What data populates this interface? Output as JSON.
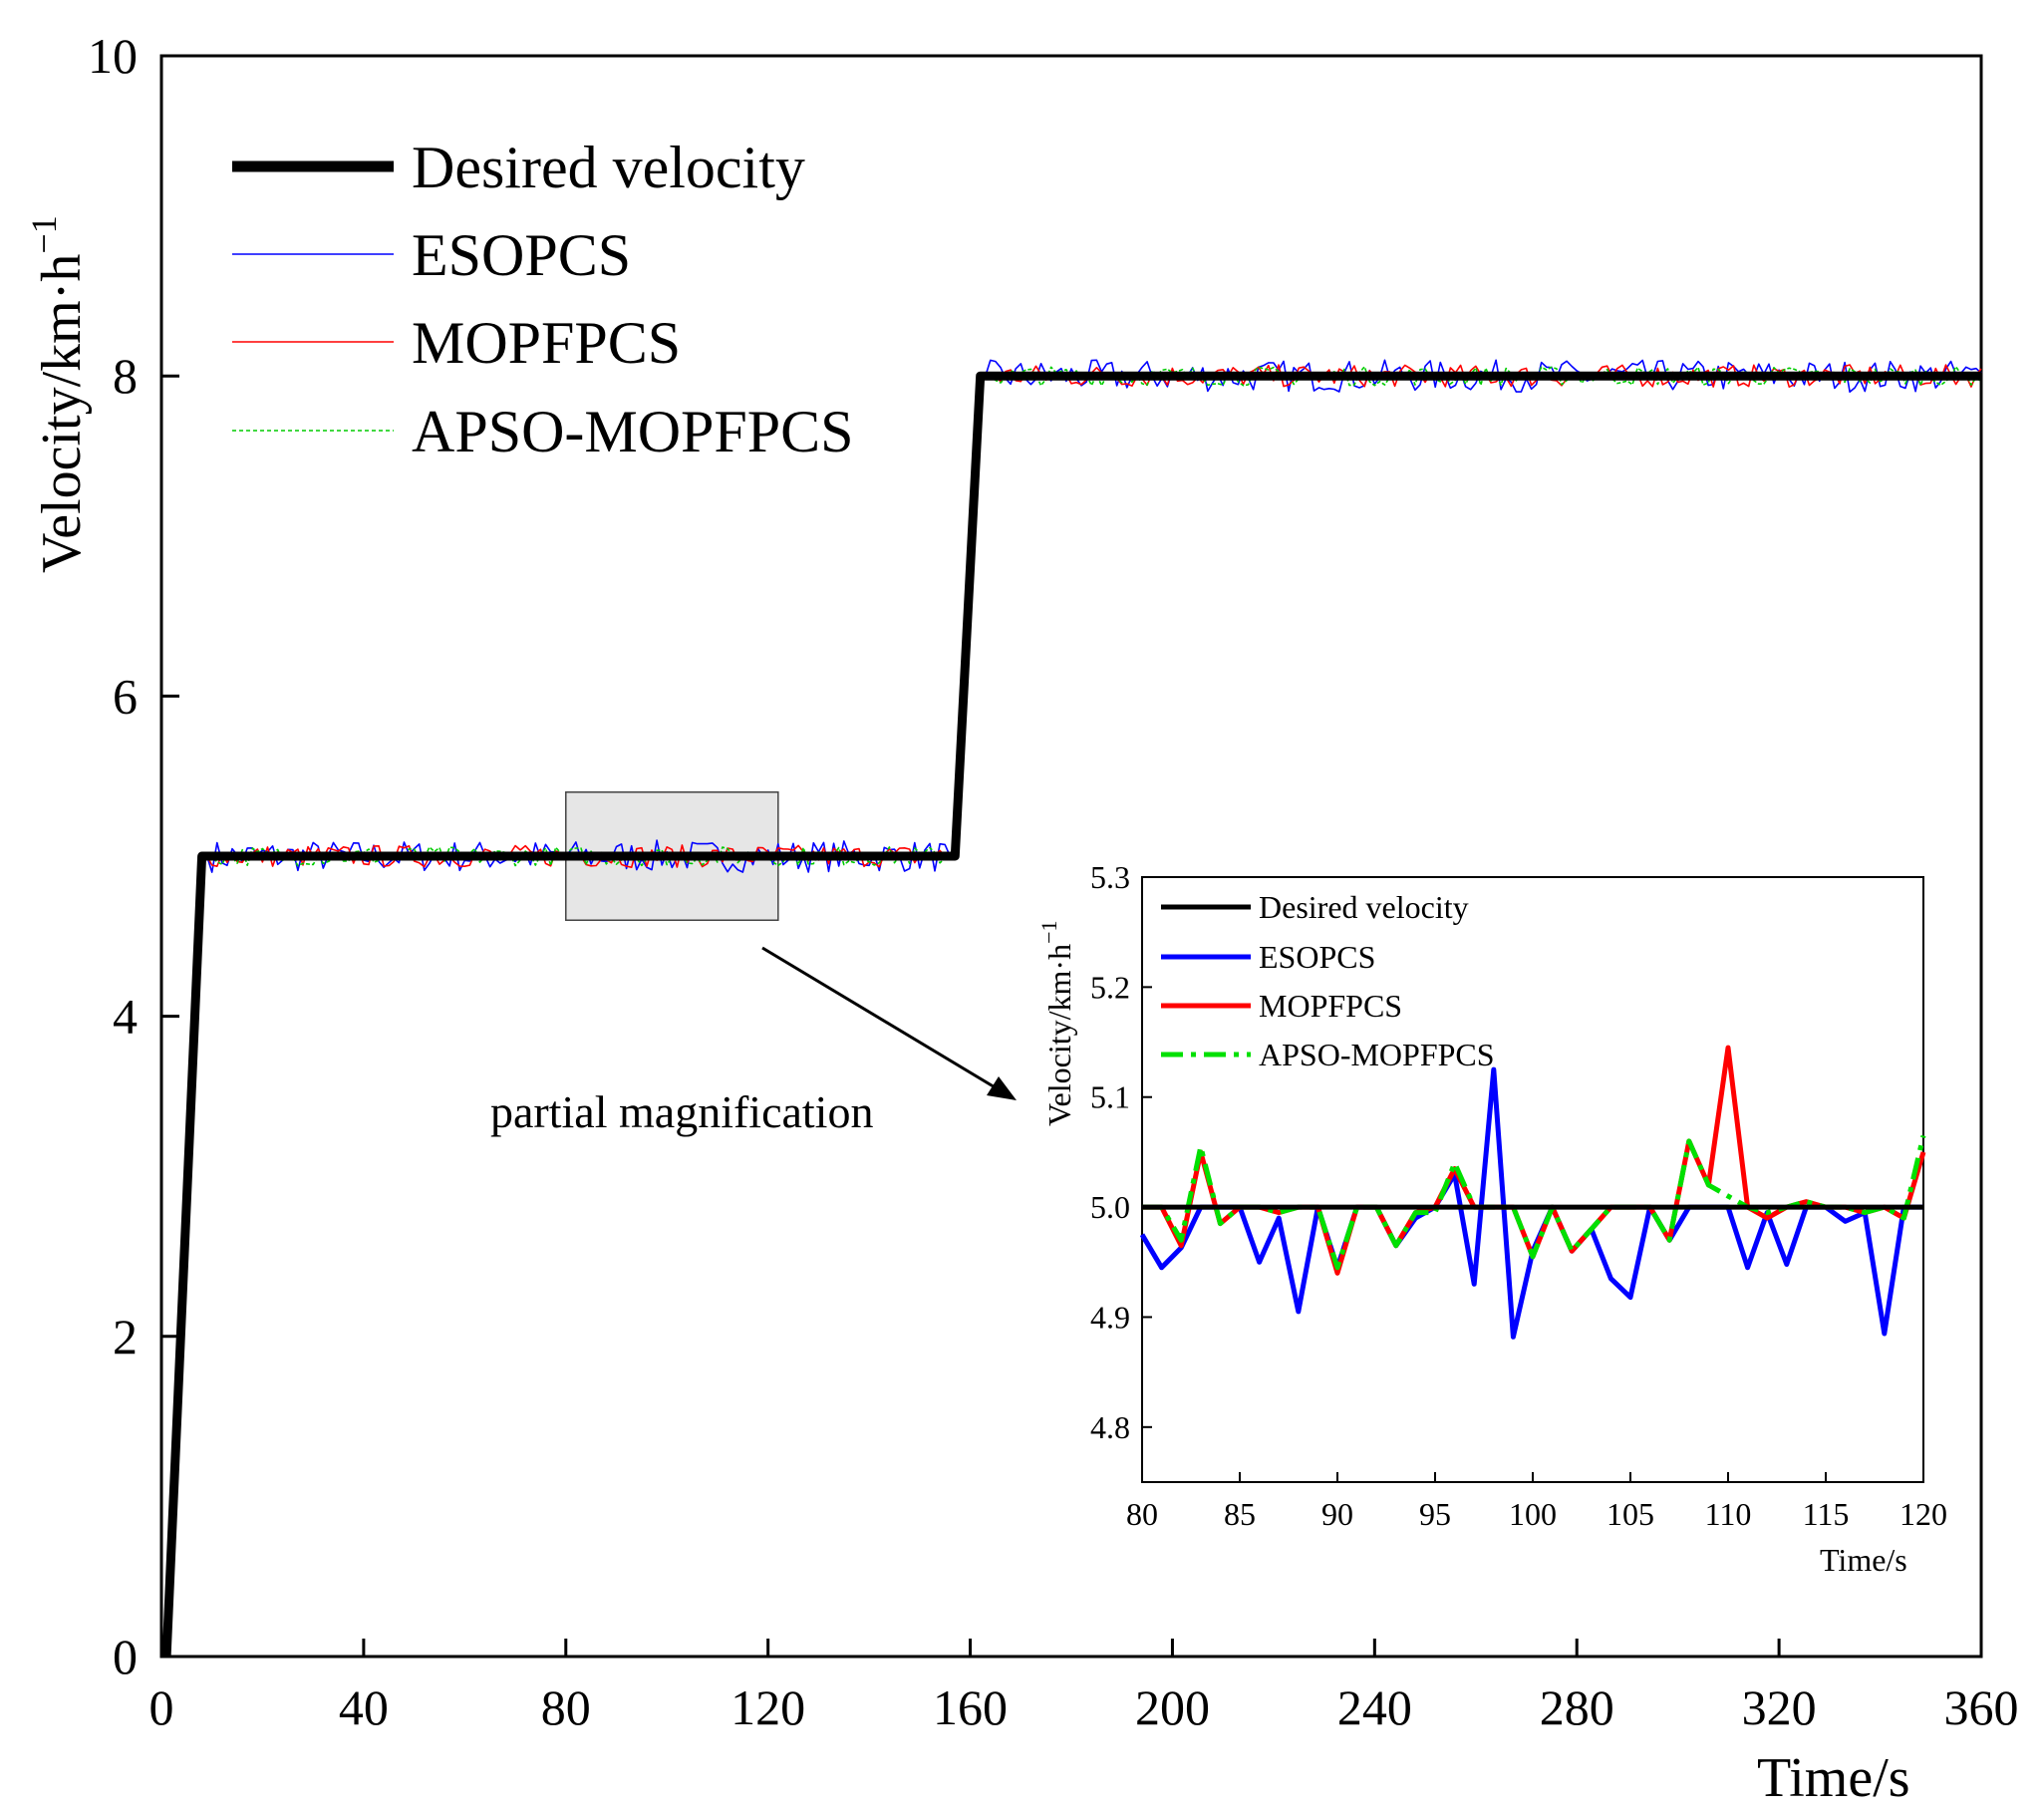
{
  "chart_data": [
    {
      "id": "main",
      "type": "line",
      "title": "",
      "xlabel": "Time/s",
      "ylabel": "Velocity/km·h",
      "ylabel_superscript": "−1",
      "xlim": [
        0,
        360
      ],
      "ylim": [
        0,
        10
      ],
      "xticks": [
        0,
        40,
        80,
        120,
        160,
        200,
        240,
        280,
        320,
        360
      ],
      "yticks": [
        0,
        2,
        4,
        6,
        8,
        10
      ],
      "grid": false,
      "legend_position": "top-left",
      "series": [
        {
          "name": "Desired velocity",
          "color": "#000000",
          "style": "solid-thick",
          "points": [
            [
              1,
              0
            ],
            [
              8,
              5
            ],
            [
              157,
              5
            ],
            [
              162,
              8
            ],
            [
              360,
              8
            ]
          ]
        },
        {
          "name": "ESOPCS",
          "color": "#0000ff",
          "style": "solid-thin",
          "ramps": [
            [
              1,
              0
            ],
            [
              8,
              5
            ],
            [
              157,
              5
            ],
            [
              162,
              8
            ],
            [
              360,
              8
            ]
          ],
          "noise_amplitude": 0.1
        },
        {
          "name": "MOPFPCS",
          "color": "#ff0000",
          "style": "solid-thin",
          "ramps": [
            [
              1,
              0
            ],
            [
              8,
              5
            ],
            [
              157,
              5
            ],
            [
              162,
              8
            ],
            [
              360,
              8
            ]
          ],
          "noise_amplitude": 0.07
        },
        {
          "name": "APSO-MOPFPCS",
          "color": "#00cc00",
          "style": "dashed-thin",
          "ramps": [
            [
              1,
              0
            ],
            [
              8,
              5
            ],
            [
              157,
              5
            ],
            [
              162,
              8
            ],
            [
              360,
              8
            ]
          ],
          "noise_amplitude": 0.06
        }
      ],
      "zoom_box": {
        "x": [
          80,
          122
        ],
        "y": [
          4.6,
          5.4
        ]
      },
      "annotation": "partial magnification"
    },
    {
      "id": "inset",
      "type": "line",
      "title": "",
      "xlabel": "Time/s",
      "ylabel": "Velocity/km·h",
      "ylabel_superscript": "−1",
      "xlim": [
        80,
        120
      ],
      "ylim": [
        4.75,
        5.3
      ],
      "xticks": [
        80,
        85,
        90,
        95,
        100,
        105,
        110,
        115,
        120
      ],
      "yticks": [
        4.8,
        4.9,
        5.0,
        5.1,
        5.2,
        5.3
      ],
      "ytick_labels": [
        "4.8",
        "4.9",
        "5.0",
        "5.1",
        "5.2",
        "5.3"
      ],
      "grid": false,
      "legend_position": "top-left",
      "series": [
        {
          "name": "Desired velocity",
          "color": "#000000",
          "style": "solid",
          "x": [
            80,
            120
          ],
          "y": [
            5.0,
            5.0
          ]
        },
        {
          "name": "ESOPCS",
          "color": "#0000ff",
          "style": "solid",
          "x": [
            80,
            81,
            82,
            83,
            84,
            85,
            86,
            87,
            88,
            89,
            90,
            91,
            92,
            93,
            94,
            95,
            96,
            97,
            98,
            99,
            100,
            101,
            102,
            103,
            104,
            105,
            106,
            107,
            108,
            109,
            110,
            111,
            112,
            113,
            114,
            115,
            116,
            117,
            118,
            119,
            120
          ],
          "y": [
            4.975,
            4.945,
            4.963,
            5.0,
            5.0,
            5.0,
            4.95,
            4.99,
            4.905,
            5.0,
            4.945,
            5.0,
            5.0,
            4.965,
            4.99,
            5.0,
            5.03,
            4.93,
            5.125,
            4.882,
            4.96,
            5.0,
            4.96,
            4.98,
            4.935,
            4.918,
            5.0,
            4.97,
            5.0,
            5.0,
            5.0,
            4.945,
            4.995,
            4.948,
            5.0,
            5.0,
            4.987,
            4.995,
            4.885,
            5.0,
            5.0
          ]
        },
        {
          "name": "MOPFPCS",
          "color": "#ff0000",
          "style": "solid",
          "x": [
            80,
            81,
            82,
            83,
            84,
            85,
            86,
            87,
            88,
            89,
            90,
            91,
            92,
            93,
            94,
            95,
            96,
            97,
            98,
            99,
            100,
            101,
            102,
            103,
            104,
            105,
            106,
            107,
            108,
            109,
            110,
            111,
            112,
            113,
            114,
            115,
            116,
            117,
            118,
            119,
            120
          ],
          "y": [
            5.0,
            5.0,
            4.965,
            5.05,
            4.985,
            5.0,
            5.0,
            4.995,
            5.0,
            5.0,
            4.94,
            5.0,
            5.0,
            4.965,
            4.995,
            5.0,
            5.035,
            5.0,
            5.0,
            5.0,
            4.955,
            5.0,
            4.96,
            4.98,
            5.0,
            5.0,
            5.0,
            4.97,
            5.06,
            5.02,
            5.145,
            5.0,
            4.99,
            5.0,
            5.005,
            5.0,
            5.0,
            4.995,
            5.0,
            4.99,
            5.05
          ]
        },
        {
          "name": "APSO-MOPFPCS",
          "color": "#00e000",
          "style": "dash-dot",
          "x": [
            80,
            81,
            82,
            83,
            84,
            85,
            86,
            87,
            88,
            89,
            90,
            91,
            92,
            93,
            94,
            95,
            96,
            97,
            98,
            99,
            100,
            101,
            102,
            103,
            104,
            105,
            106,
            107,
            108,
            109,
            110,
            111,
            112,
            113,
            114,
            115,
            116,
            117,
            118,
            119,
            120
          ],
          "y": [
            5.0,
            5.0,
            4.97,
            5.055,
            4.985,
            5.0,
            5.0,
            4.995,
            5.0,
            5.0,
            4.945,
            5.0,
            5.0,
            4.965,
            4.995,
            4.995,
            5.04,
            5.0,
            5.0,
            5.0,
            4.955,
            5.0,
            4.96,
            4.98,
            5.0,
            5.0,
            5.0,
            4.97,
            5.06,
            5.02,
            5.01,
            5.0,
            4.995,
            5.0,
            5.005,
            5.0,
            5.0,
            4.995,
            5.0,
            4.99,
            5.065
          ]
        }
      ]
    }
  ]
}
